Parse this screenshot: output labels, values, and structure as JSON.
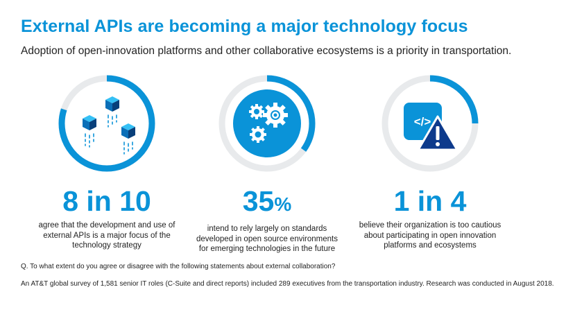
{
  "header": {
    "title": "External APIs are becoming a major technology focus",
    "subtitle": "Adoption of open-innovation platforms and other collaborative ecosystems is a priority in transportation."
  },
  "colors": {
    "accent": "#0a93d8",
    "ring_track": "#e8eaec",
    "warning_triangle": "#0d3a8c"
  },
  "chart_data": [
    {
      "type": "pie",
      "stat": "8 in 10",
      "fraction": 0.8,
      "icon": "cubes-icon",
      "description": "agree that the development and use of external APIs is a major focus of the technology strategy"
    },
    {
      "type": "pie",
      "stat": "35",
      "unit": "%",
      "fraction": 0.35,
      "icon": "gears-icon",
      "description": "intend to rely largely on standards developed in open source environments for emerging technologies in the future"
    },
    {
      "type": "pie",
      "stat": "1 in 4",
      "fraction": 0.25,
      "icon": "code-warning-icon",
      "description": "believe their organization is too cautious about participating in open innovation platforms and ecosystems"
    }
  ],
  "footer": {
    "question": "Q. To what extent do you agree or disagree with the following statements about external collaboration?",
    "source": "An AT&T global survey of 1,581 senior IT roles (C-Suite and direct reports) included 289 executives from the transportation industry. Research was conducted in August 2018."
  }
}
